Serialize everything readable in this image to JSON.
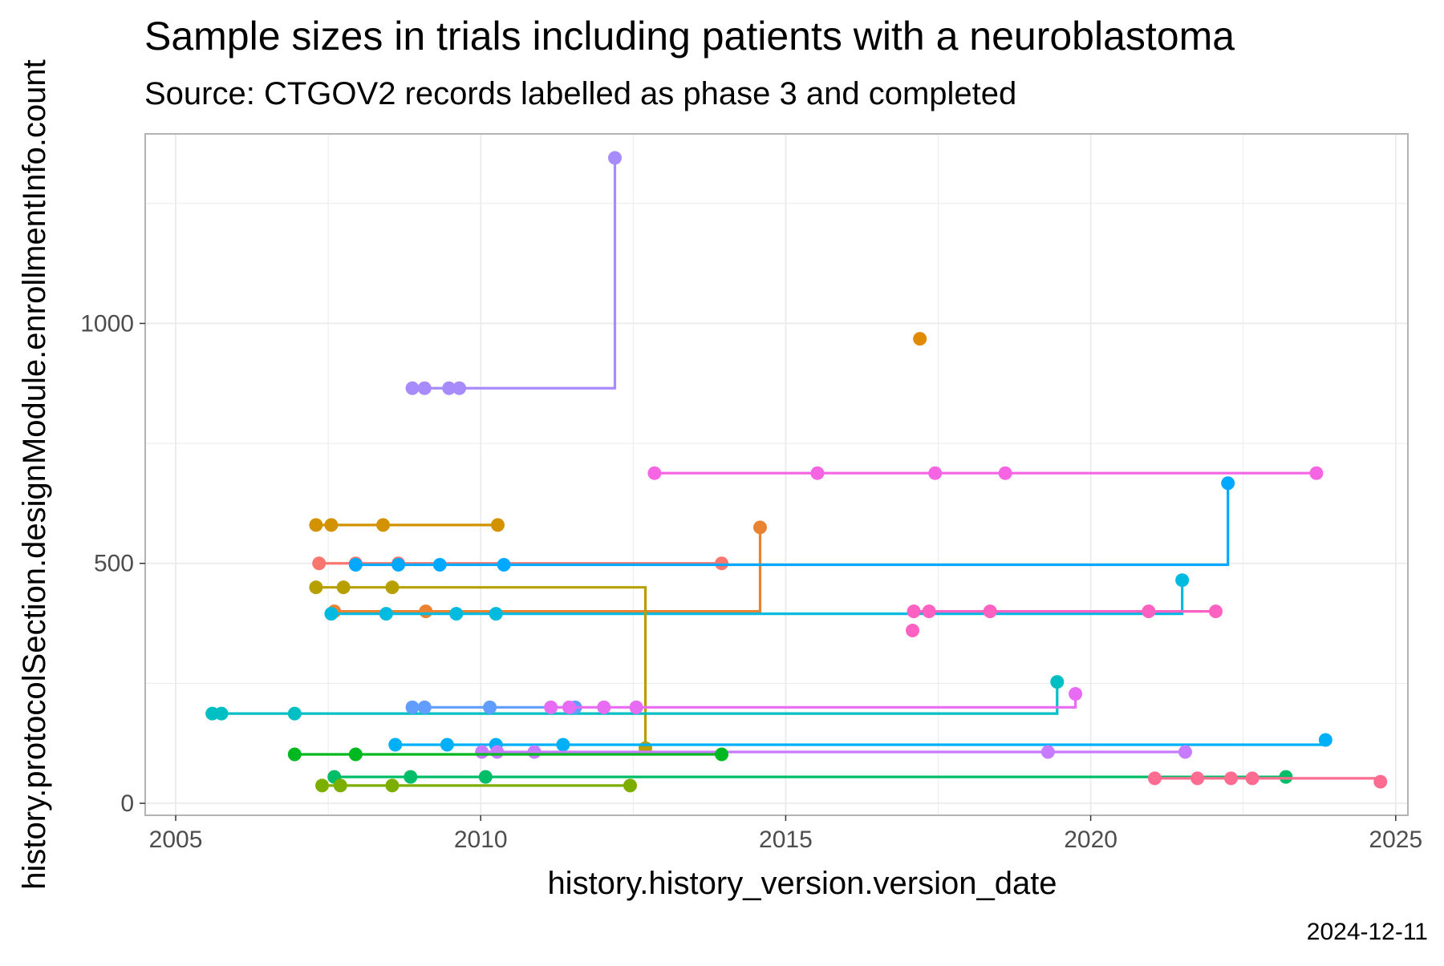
{
  "chart_data": {
    "type": "line",
    "title": "Sample sizes in trials including patients with a neuroblastoma",
    "subtitle": "Source: CTGOV2 records labelled as phase 3 and completed",
    "xlabel": "history.history_version.version_date",
    "ylabel": "history.protocolSection.designModule.enrollmentInfo.count",
    "caption": "2024-12-11",
    "x_ticks": [
      "2005",
      "2010",
      "2015",
      "2020",
      "2025"
    ],
    "y_ticks": [
      "0",
      "500",
      "1000"
    ],
    "xlim": [
      2004.5,
      2025.2
    ],
    "ylim": [
      -25,
      1395
    ],
    "grid": true,
    "legend": "none",
    "step_lines": true,
    "series": [
      {
        "color": "#A78BFA",
        "points": [
          [
            2008.88,
            865
          ],
          [
            2009.08,
            865
          ],
          [
            2009.48,
            865
          ],
          [
            2009.65,
            865
          ],
          [
            2012.2,
            1345
          ]
        ]
      },
      {
        "color": "#EA8331",
        "points": [
          [
            2007.6,
            400
          ],
          [
            2009.1,
            400
          ],
          [
            2014.58,
            575
          ]
        ]
      },
      {
        "color": "#F8766D",
        "points": [
          [
            2007.35,
            500
          ],
          [
            2007.95,
            500
          ],
          [
            2008.65,
            500
          ],
          [
            2013.95,
            500
          ]
        ]
      },
      {
        "color": "#00A9FF",
        "points": [
          [
            2007.95,
            497
          ],
          [
            2008.65,
            497
          ],
          [
            2009.33,
            497
          ],
          [
            2010.38,
            497
          ],
          [
            2022.25,
            667
          ]
        ]
      },
      {
        "color": "#00BAE0",
        "points": [
          [
            2007.55,
            395
          ],
          [
            2008.45,
            395
          ],
          [
            2009.6,
            395
          ],
          [
            2010.25,
            395
          ],
          [
            2021.5,
            465
          ]
        ]
      },
      {
        "color": "#D39200",
        "points": [
          [
            2007.3,
            580
          ],
          [
            2007.55,
            580
          ],
          [
            2008.4,
            580
          ],
          [
            2010.28,
            580
          ]
        ]
      },
      {
        "color": "#B79F00",
        "points": [
          [
            2007.3,
            450
          ],
          [
            2007.75,
            450
          ],
          [
            2008.55,
            450
          ],
          [
            2012.7,
            115
          ]
        ]
      },
      {
        "color": "#00BFC4",
        "points": [
          [
            2005.6,
            187
          ],
          [
            2005.75,
            187
          ],
          [
            2006.95,
            187
          ],
          [
            2019.45,
            253
          ]
        ]
      },
      {
        "color": "#619CFF",
        "points": [
          [
            2008.88,
            200
          ],
          [
            2009.08,
            200
          ],
          [
            2010.15,
            200
          ],
          [
            2011.55,
            200
          ]
        ]
      },
      {
        "color": "#F564E3",
        "points": [
          [
            2012.85,
            688
          ],
          [
            2015.52,
            688
          ],
          [
            2017.45,
            688
          ],
          [
            2018.6,
            688
          ],
          [
            2023.7,
            688
          ]
        ]
      },
      {
        "color": "#FF61C3",
        "points": [
          [
            2017.1,
            400
          ],
          [
            2017.35,
            400
          ],
          [
            2018.35,
            400
          ],
          [
            2020.95,
            400
          ],
          [
            2022.05,
            400
          ]
        ]
      },
      {
        "color": "#FF61C3",
        "points": [
          [
            2017.08,
            360
          ]
        ]
      },
      {
        "color": "#E76BF3",
        "points": [
          [
            2011.15,
            200
          ],
          [
            2011.45,
            200
          ],
          [
            2012.02,
            200
          ],
          [
            2012.55,
            200
          ],
          [
            2019.75,
            228
          ]
        ]
      },
      {
        "color": "#00B0F6",
        "points": [
          [
            2008.6,
            122
          ],
          [
            2009.45,
            122
          ],
          [
            2010.25,
            122
          ],
          [
            2011.35,
            122
          ],
          [
            2023.85,
            132
          ]
        ]
      },
      {
        "color": "#C77CFF",
        "points": [
          [
            2010.02,
            107
          ],
          [
            2010.27,
            107
          ],
          [
            2010.88,
            107
          ],
          [
            2019.3,
            107
          ],
          [
            2021.55,
            107
          ]
        ]
      },
      {
        "color": "#00B81F",
        "points": [
          [
            2006.95,
            102
          ],
          [
            2007.95,
            102
          ],
          [
            2013.95,
            102
          ]
        ]
      },
      {
        "color": "#00BE67",
        "points": [
          [
            2007.6,
            55
          ],
          [
            2008.85,
            55
          ],
          [
            2010.08,
            55
          ],
          [
            2023.2,
            55
          ]
        ]
      },
      {
        "color": "#FF6C91",
        "points": [
          [
            2021.05,
            52
          ],
          [
            2021.75,
            52
          ],
          [
            2022.3,
            52
          ],
          [
            2022.65,
            52
          ],
          [
            2024.75,
            45
          ]
        ]
      },
      {
        "color": "#7CAE00",
        "points": [
          [
            2007.4,
            37
          ],
          [
            2007.7,
            37
          ],
          [
            2008.55,
            37
          ],
          [
            2012.45,
            37
          ]
        ]
      },
      {
        "color": "#E18A00",
        "points": [
          [
            2017.2,
            968
          ]
        ]
      }
    ]
  }
}
